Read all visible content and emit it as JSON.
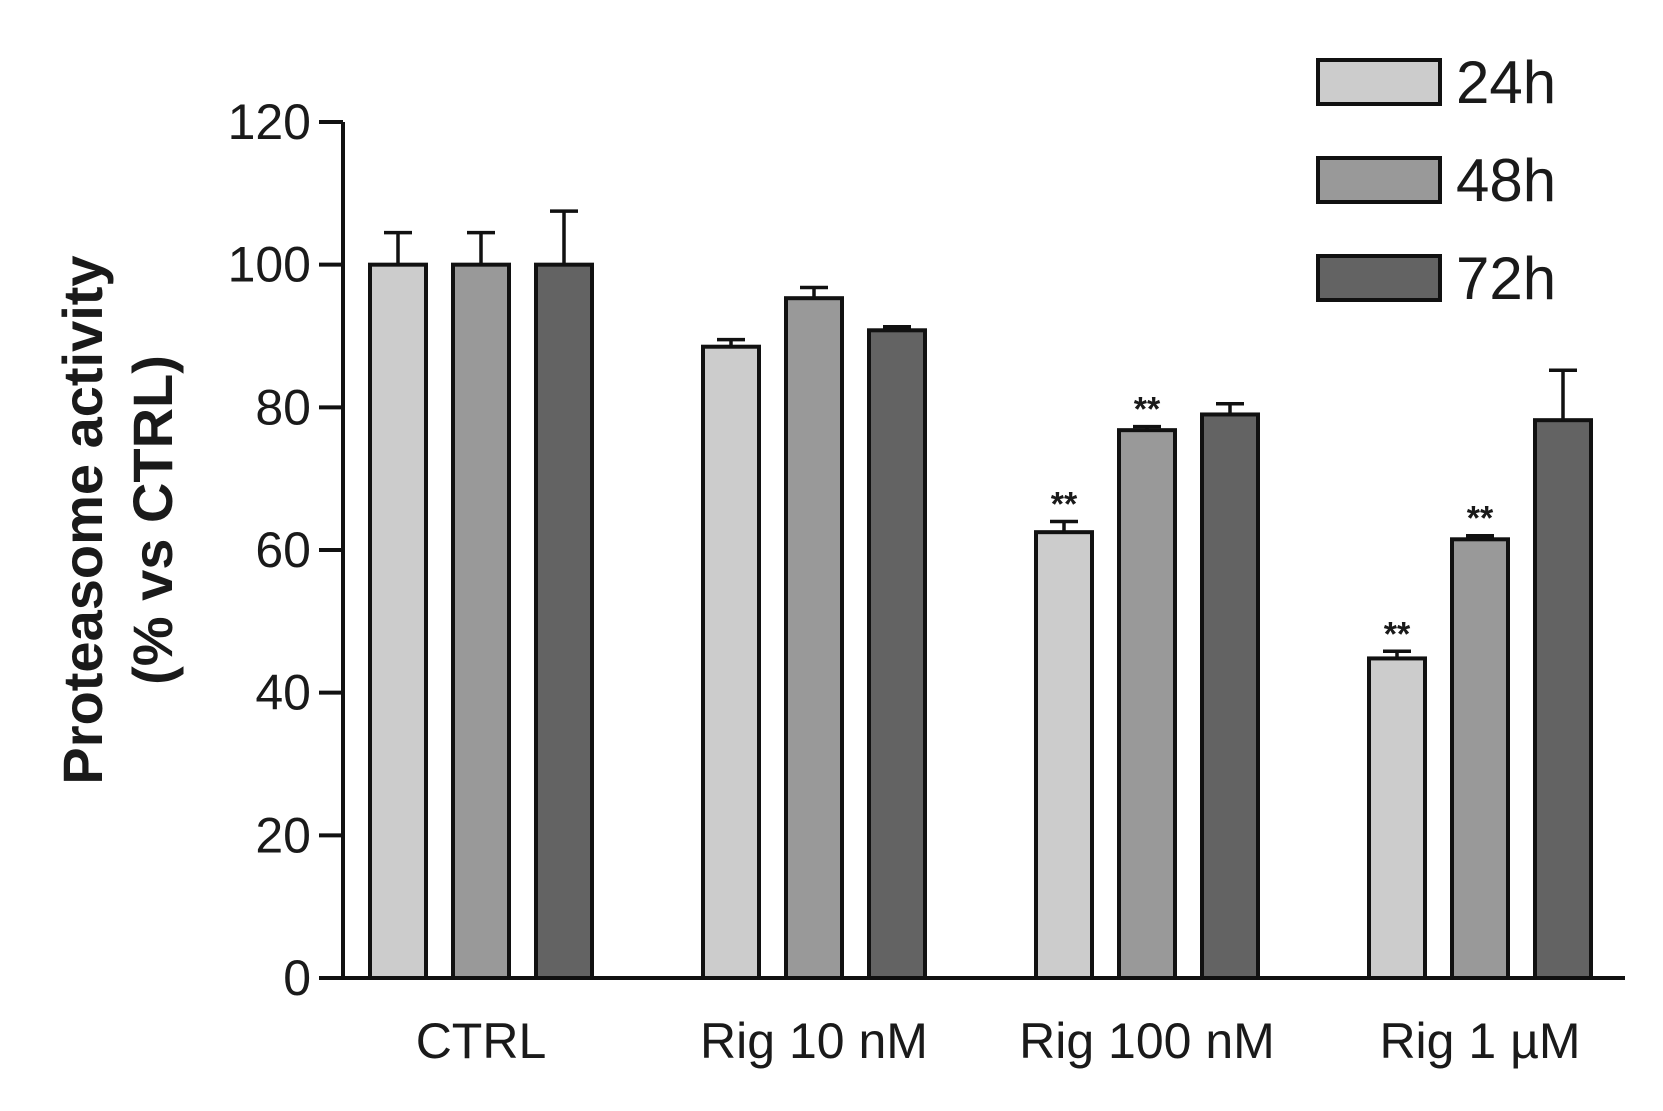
{
  "chart_data": {
    "type": "bar",
    "title": "",
    "xlabel": "",
    "ylabel": [
      "Proteasome activity",
      "(% vs CTRL)"
    ],
    "ylim": [
      0,
      120
    ],
    "yticks": [
      0,
      20,
      40,
      60,
      80,
      100,
      120
    ],
    "categories": [
      "CTRL",
      "Rig 10 nM",
      "Rig 100 nM",
      "Rig 1 µM"
    ],
    "series": [
      {
        "name": "24h",
        "color": "#cccccc",
        "values": [
          100,
          88.5,
          62.5,
          44.8
        ],
        "errors": [
          4.5,
          1.0,
          1.5,
          1.0
        ],
        "significance": [
          "",
          "",
          "**",
          "**"
        ]
      },
      {
        "name": "48h",
        "color": "#999999",
        "values": [
          100,
          95.3,
          76.8,
          61.5
        ],
        "errors": [
          4.5,
          1.5,
          0.5,
          0.5
        ],
        "significance": [
          "",
          "",
          "**",
          "**"
        ]
      },
      {
        "name": "72h",
        "color": "#636363",
        "values": [
          100,
          90.8,
          79.0,
          78.2
        ],
        "errors": [
          7.5,
          0.5,
          1.5,
          7.0
        ],
        "significance": [
          "",
          "",
          "",
          ""
        ]
      }
    ],
    "legend_position": "top-right",
    "grid": false
  }
}
